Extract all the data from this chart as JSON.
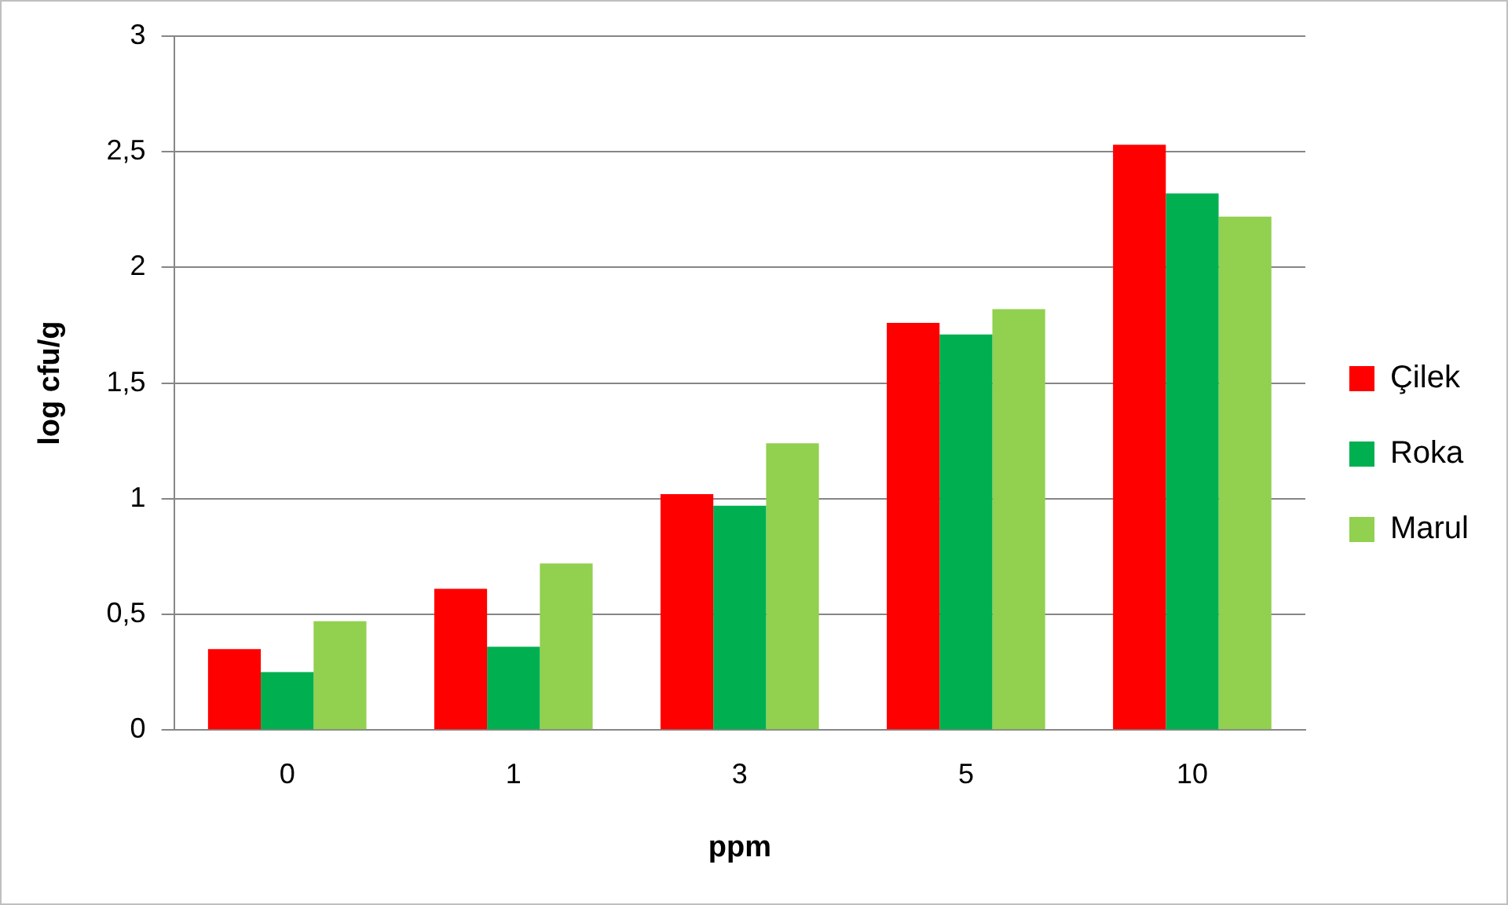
{
  "chart_data": {
    "type": "bar",
    "xlabel": "ppm",
    "ylabel": "log cfu/g",
    "categories": [
      "0",
      "1",
      "3",
      "5",
      "10"
    ],
    "series": [
      {
        "name": "Çilek",
        "color": "#ff0000",
        "values": [
          0.35,
          0.61,
          1.02,
          1.76,
          2.53
        ]
      },
      {
        "name": "Roka",
        "color": "#00b050",
        "values": [
          0.25,
          0.36,
          0.97,
          1.71,
          2.32
        ]
      },
      {
        "name": "Marul",
        "color": "#92d050",
        "values": [
          0.47,
          0.72,
          1.24,
          1.82,
          2.22
        ]
      }
    ],
    "ylim": [
      0,
      3
    ],
    "yticks": [
      0,
      {
        "value": 0.5,
        "label": "0,5"
      },
      1,
      {
        "value": 1.5,
        "label": "1,5"
      },
      2,
      {
        "value": 2.5,
        "label": "2,5"
      },
      3
    ],
    "grid": "y",
    "legend": "right"
  }
}
